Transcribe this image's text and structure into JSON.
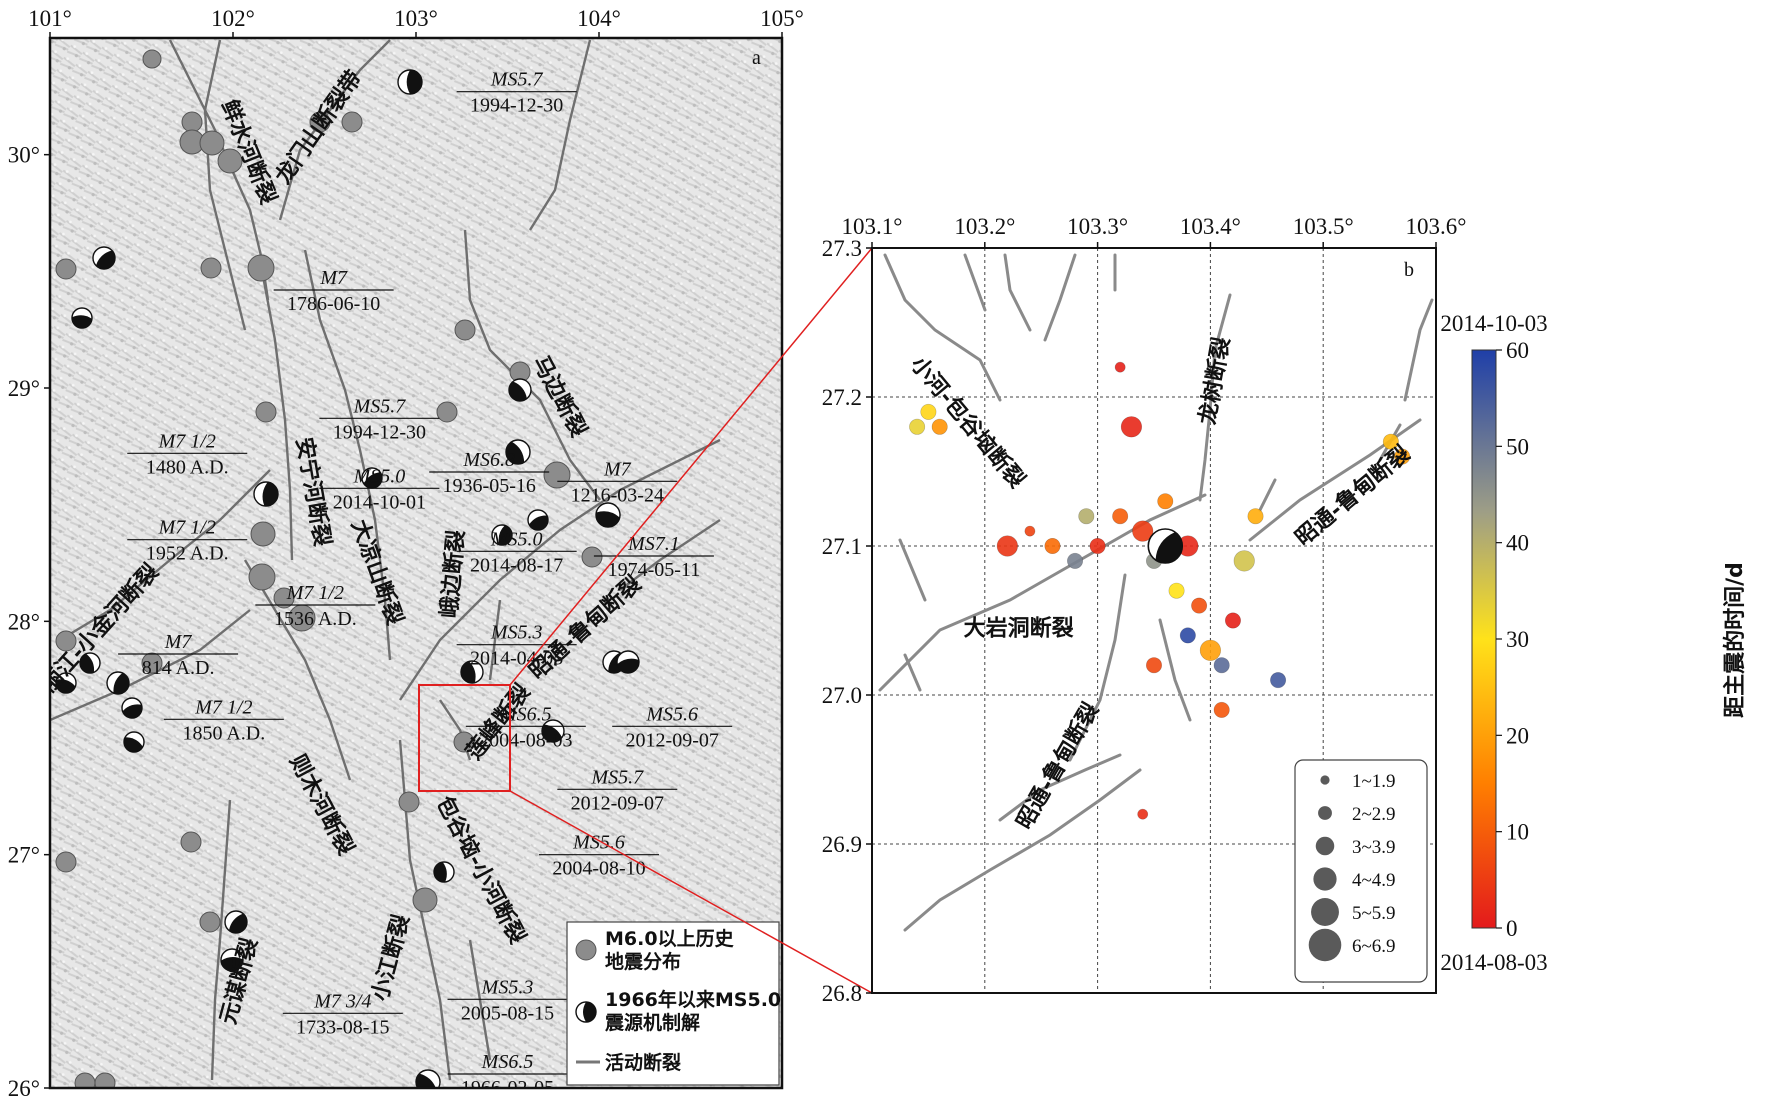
{
  "panel_a": {
    "letter": "a",
    "x_ticks": [
      "101°",
      "102°",
      "103°",
      "104°",
      "105°"
    ],
    "y_ticks": [
      "30°",
      "29°",
      "28°",
      "27°",
      "26°"
    ],
    "x_range": [
      101,
      105
    ],
    "y_range": [
      26,
      30.5
    ],
    "faults": [
      {
        "name": "鲜水河断裂",
        "lon": 102.05,
        "lat": 30.0,
        "rot": 68
      },
      {
        "name": "龙门山断裂带",
        "lon": 102.5,
        "lat": 30.1,
        "rot": -55
      },
      {
        "name": "马边断裂",
        "lon": 103.75,
        "lat": 28.95,
        "rot": 62
      },
      {
        "name": "安宁河断裂",
        "lon": 102.4,
        "lat": 28.55,
        "rot": 80
      },
      {
        "name": "大凉山断裂",
        "lon": 102.75,
        "lat": 28.2,
        "rot": 70
      },
      {
        "name": "峨边断裂",
        "lon": 103.24,
        "lat": 28.2,
        "rot": -85
      },
      {
        "name": "丽江-小金河断裂",
        "lon": 101.3,
        "lat": 27.95,
        "rot": -48
      },
      {
        "name": "昭通-鲁甸断裂",
        "lon": 103.95,
        "lat": 27.95,
        "rot": -42
      },
      {
        "name": "莲峰断裂",
        "lon": 103.48,
        "lat": 27.55,
        "rot": -52
      },
      {
        "name": "则木河断裂",
        "lon": 102.45,
        "lat": 27.2,
        "rot": 62
      },
      {
        "name": "包谷垴-小河断裂",
        "lon": 103.32,
        "lat": 26.92,
        "rot": 62
      },
      {
        "name": "小江断裂",
        "lon": 102.9,
        "lat": 26.55,
        "rot": -75
      },
      {
        "name": "元谋断裂",
        "lon": 102.07,
        "lat": 26.45,
        "rot": -75
      }
    ],
    "events": [
      {
        "mag": "M7",
        "date": "1786-06-10",
        "lon": 102.55,
        "lat": 29.42
      },
      {
        "mag": "M7 1/2",
        "date": "1480 A.D.",
        "lon": 101.75,
        "lat": 28.72
      },
      {
        "mag": "M7 1/2",
        "date": "1952 A.D.",
        "lon": 101.75,
        "lat": 28.35
      },
      {
        "mag": "M7 1/2",
        "date": "1536 A.D.",
        "lon": 102.45,
        "lat": 28.07
      },
      {
        "mag": "M7",
        "date": "814 A.D.",
        "lon": 101.7,
        "lat": 27.86
      },
      {
        "mag": "M7 1/2",
        "date": "1850 A.D.",
        "lon": 101.95,
        "lat": 27.58
      },
      {
        "mag": "M7",
        "date": "1216-03-24",
        "lon": 104.1,
        "lat": 28.6
      },
      {
        "mag": "M7 3/4",
        "date": "1733-08-15",
        "lon": 102.6,
        "lat": 26.32
      },
      {
        "mag": "MS5.7",
        "date": "1994-12-30",
        "lon": 103.55,
        "lat": 30.27
      },
      {
        "mag": "MS5.7",
        "date": "1994-12-30",
        "lon": 102.8,
        "lat": 28.87
      },
      {
        "mag": "MS5.0",
        "date": "2014-10-01",
        "lon": 102.8,
        "lat": 28.57
      },
      {
        "mag": "MS6.8",
        "date": "1936-05-16",
        "lon": 103.4,
        "lat": 28.64
      },
      {
        "mag": "MS5.0",
        "date": "2014-08-17",
        "lon": 103.55,
        "lat": 28.3
      },
      {
        "mag": "MS7.1",
        "date": "1974-05-11",
        "lon": 104.3,
        "lat": 28.28
      },
      {
        "mag": "MS5.3",
        "date": "2014-04-05",
        "lon": 103.55,
        "lat": 27.9
      },
      {
        "mag": "MS6.5",
        "date": "2004-08-03",
        "lon": 103.6,
        "lat": 27.55
      },
      {
        "mag": "MS5.6",
        "date": "2012-09-07",
        "lon": 104.4,
        "lat": 27.55
      },
      {
        "mag": "MS5.7",
        "date": "2012-09-07",
        "lon": 104.1,
        "lat": 27.28
      },
      {
        "mag": "MS5.6",
        "date": "2004-08-10",
        "lon": 104.0,
        "lat": 27.0
      },
      {
        "mag": "MS5.3",
        "date": "2005-08-15",
        "lon": 103.5,
        "lat": 26.38
      },
      {
        "mag": "MS6.5",
        "date": "1966-02-05",
        "lon": 103.5,
        "lat": 26.06
      }
    ],
    "legend": {
      "historical_1": "M6.0以上历史",
      "historical_2": "地震分布",
      "focal_1": "1966年以来MS5.0",
      "focal_2": "震源机制解",
      "fault": "活动断裂"
    }
  },
  "panel_b": {
    "letter": "b",
    "x_ticks": [
      "103.1°",
      "103.2°",
      "103.3°",
      "103.4°",
      "103.5°",
      "103.6°"
    ],
    "y_ticks": [
      "27.3",
      "27.2",
      "27.1",
      "27.0",
      "26.9",
      "26.8"
    ],
    "x_range": [
      103.1,
      103.6
    ],
    "y_range": [
      26.8,
      27.3
    ],
    "faults": [
      {
        "name": "小河-包谷垴断裂",
        "lon": 103.18,
        "lat": 27.18,
        "rot": 50
      },
      {
        "name": "龙树断裂",
        "lon": 103.41,
        "lat": 27.21,
        "rot": -80
      },
      {
        "name": "昭通-鲁甸断裂",
        "lon": 103.53,
        "lat": 27.13,
        "rot": -40
      },
      {
        "name": "大岩洞断裂",
        "lon": 103.23,
        "lat": 27.04,
        "rot": 0
      },
      {
        "name": "昭通-鲁甸断裂",
        "lon": 103.27,
        "lat": 26.95,
        "rot": -60
      }
    ],
    "colorbar": {
      "label": "距主震的时间/d",
      "top_date": "2014-10-03",
      "bottom_date": "2014-08-03",
      "ticks": [
        "60",
        "50",
        "40",
        "30",
        "20",
        "10",
        "0"
      ],
      "range": [
        0,
        60
      ]
    },
    "size_legend": [
      "1~1.9",
      "2~2.9",
      "3~3.9",
      "4~4.9",
      "5~5.9",
      "6~6.9"
    ]
  },
  "chart_data": {
    "type": "scatter",
    "title": "",
    "xlabel": "",
    "ylabel": "",
    "xlim": [
      103.1,
      103.6
    ],
    "ylim": [
      26.8,
      27.3
    ],
    "color_variable": "距主震的时间/d",
    "color_range": [
      0,
      60
    ],
    "size_classes": [
      "1~1.9",
      "2~2.9",
      "3~3.9",
      "4~4.9",
      "5~5.9",
      "6~6.9"
    ],
    "mainshock": {
      "lon": 103.36,
      "lat": 27.1
    },
    "points": [
      {
        "lon": 103.3,
        "lat": 27.1,
        "mag": 2.5,
        "days": 3
      },
      {
        "lon": 103.32,
        "lat": 27.12,
        "mag": 2.2,
        "days": 10
      },
      {
        "lon": 103.34,
        "lat": 27.11,
        "mag": 3.2,
        "days": 5
      },
      {
        "lon": 103.35,
        "lat": 27.09,
        "mag": 2.8,
        "days": 45
      },
      {
        "lon": 103.38,
        "lat": 27.1,
        "mag": 3.5,
        "days": 2
      },
      {
        "lon": 103.36,
        "lat": 27.13,
        "mag": 2.4,
        "days": 15
      },
      {
        "lon": 103.39,
        "lat": 27.06,
        "mag": 2.6,
        "days": 8
      },
      {
        "lon": 103.4,
        "lat": 27.03,
        "mag": 3.1,
        "days": 20
      },
      {
        "lon": 103.41,
        "lat": 27.02,
        "mag": 2.2,
        "days": 52
      },
      {
        "lon": 103.42,
        "lat": 27.05,
        "mag": 2.9,
        "days": 1
      },
      {
        "lon": 103.37,
        "lat": 27.07,
        "mag": 2.3,
        "days": 30
      },
      {
        "lon": 103.28,
        "lat": 27.09,
        "mag": 2.7,
        "days": 48
      },
      {
        "lon": 103.26,
        "lat": 27.1,
        "mag": 2.1,
        "days": 12
      },
      {
        "lon": 103.24,
        "lat": 27.11,
        "mag": 1.8,
        "days": 6
      },
      {
        "lon": 103.22,
        "lat": 27.1,
        "mag": 3.0,
        "days": 4
      },
      {
        "lon": 103.15,
        "lat": 27.19,
        "mag": 2.5,
        "days": 28
      },
      {
        "lon": 103.16,
        "lat": 27.18,
        "mag": 2.3,
        "days": 18
      },
      {
        "lon": 103.14,
        "lat": 27.18,
        "mag": 2.0,
        "days": 33
      },
      {
        "lon": 103.33,
        "lat": 27.18,
        "mag": 3.1,
        "days": 2
      },
      {
        "lon": 103.32,
        "lat": 27.22,
        "mag": 1.9,
        "days": 1
      },
      {
        "lon": 103.44,
        "lat": 27.12,
        "mag": 2.6,
        "days": 22
      },
      {
        "lon": 103.43,
        "lat": 27.09,
        "mag": 3.3,
        "days": 36
      },
      {
        "lon": 103.46,
        "lat": 27.01,
        "mag": 2.8,
        "days": 55
      },
      {
        "lon": 103.56,
        "lat": 27.17,
        "mag": 2.7,
        "days": 24
      },
      {
        "lon": 103.57,
        "lat": 27.16,
        "mag": 2.9,
        "days": 20
      },
      {
        "lon": 103.35,
        "lat": 27.02,
        "mag": 2.0,
        "days": 7
      },
      {
        "lon": 103.34,
        "lat": 26.92,
        "mag": 1.6,
        "days": 3
      },
      {
        "lon": 103.41,
        "lat": 26.99,
        "mag": 2.3,
        "days": 9
      },
      {
        "lon": 103.38,
        "lat": 27.04,
        "mag": 2.5,
        "days": 58
      },
      {
        "lon": 103.29,
        "lat": 27.12,
        "mag": 2.2,
        "days": 40
      }
    ]
  }
}
